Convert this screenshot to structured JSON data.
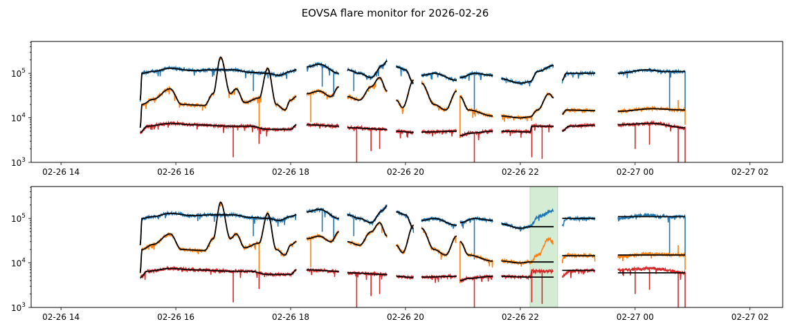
{
  "chart_data": {
    "type": "line",
    "title": "EOVSA flare monitor for 2026-02-26",
    "xlabel": "",
    "ylabel": "",
    "yscale": "log",
    "ylim": [
      1000,
      520000
    ],
    "xlim_hours": [
      13.48,
      26.57
    ],
    "yticks": [
      {
        "v": 1000,
        "base": "10",
        "exp": "3"
      },
      {
        "v": 10000,
        "base": "10",
        "exp": "4"
      },
      {
        "v": 100000,
        "base": "10",
        "exp": "5"
      }
    ],
    "xticks": [
      {
        "h": 14,
        "label": "02-26 14"
      },
      {
        "h": 16,
        "label": "02-26 16"
      },
      {
        "h": 18,
        "label": "02-26 18"
      },
      {
        "h": 20,
        "label": "02-26 20"
      },
      {
        "h": 22,
        "label": "02-26 22"
      },
      {
        "h": 24,
        "label": "02-27 00"
      },
      {
        "h": 26,
        "label": "02-27 02"
      }
    ],
    "grid": false,
    "legend": "none",
    "panels": 2,
    "highlight_span_bottom_hours": [
      22.17,
      22.65
    ],
    "highlight_color": "#d4ebd4",
    "smoothed_color": "#000000",
    "smoothed_frozen_span_bottom": [
      22.17,
      22.58
    ],
    "series": [
      {
        "name": "blue",
        "color": "#1f77b4",
        "segments": [
          [
            [
              15.38,
              25000
            ],
            [
              15.41,
              100000
            ],
            [
              15.6,
              110000
            ],
            [
              15.9,
              130000
            ],
            [
              16.3,
              115000
            ],
            [
              16.6,
              120000
            ],
            [
              17.0,
              120000
            ],
            [
              17.3,
              105000
            ],
            [
              17.6,
              100000
            ],
            [
              17.8,
              90000
            ],
            [
              18.0,
              110000
            ],
            [
              18.1,
              120000
            ]
          ],
          [
            [
              18.28,
              140000
            ],
            [
              18.5,
              160000
            ],
            [
              18.84,
              100000
            ]
          ],
          [
            [
              18.99,
              120000
            ],
            [
              19.2,
              100000
            ],
            [
              19.4,
              80000
            ],
            [
              19.6,
              150000
            ],
            [
              19.68,
              190000
            ]
          ],
          [
            [
              19.84,
              140000
            ],
            [
              20.0,
              120000
            ],
            [
              20.14,
              60000
            ]
          ],
          [
            [
              20.28,
              90000
            ],
            [
              20.5,
              100000
            ],
            [
              20.89,
              70000
            ]
          ],
          [
            [
              20.95,
              80000
            ],
            [
              21.2,
              100000
            ],
            [
              21.52,
              90000
            ]
          ],
          [
            [
              21.67,
              75000
            ],
            [
              22.0,
              60000
            ],
            [
              22.17,
              65000
            ],
            [
              22.3,
              110000
            ],
            [
              22.58,
              150000
            ]
          ],
          [
            [
              22.73,
              70000
            ],
            [
              22.8,
              100000
            ],
            [
              23.3,
              100000
            ]
          ],
          [
            [
              23.7,
              100000
            ],
            [
              24.2,
              120000
            ],
            [
              24.5,
              110000
            ],
            [
              24.87,
              110000
            ]
          ]
        ],
        "spikes": [
          [
            17.35,
            40000
          ],
          [
            18.55,
            50000
          ],
          [
            18.75,
            30000
          ],
          [
            19.1,
            40000
          ],
          [
            20.92,
            12000
          ],
          [
            21.2,
            12000
          ],
          [
            24.6,
            14000
          ],
          [
            24.87,
            14000
          ]
        ]
      },
      {
        "name": "orange",
        "color": "#ff7f0e",
        "segments": [
          [
            [
              15.38,
              6000
            ],
            [
              15.41,
              20000
            ],
            [
              15.6,
              26000
            ],
            [
              15.9,
              45000
            ],
            [
              16.1,
              20000
            ],
            [
              16.5,
              19000
            ],
            [
              16.65,
              35000
            ],
            [
              16.78,
              230000
            ],
            [
              16.95,
              35000
            ],
            [
              17.05,
              45000
            ],
            [
              17.2,
              22000
            ],
            [
              17.45,
              28000
            ],
            [
              17.6,
              130000
            ],
            [
              17.75,
              20000
            ],
            [
              17.9,
              15000
            ],
            [
              18.0,
              25000
            ],
            [
              18.1,
              30000
            ]
          ],
          [
            [
              18.28,
              35000
            ],
            [
              18.5,
              40000
            ],
            [
              18.7,
              30000
            ],
            [
              18.84,
              50000
            ]
          ],
          [
            [
              18.99,
              30000
            ],
            [
              19.2,
              25000
            ],
            [
              19.4,
              50000
            ],
            [
              19.55,
              80000
            ],
            [
              19.68,
              40000
            ]
          ],
          [
            [
              19.84,
              25000
            ],
            [
              19.95,
              17000
            ],
            [
              20.14,
              70000
            ]
          ],
          [
            [
              20.28,
              60000
            ],
            [
              20.5,
              20000
            ],
            [
              20.7,
              15000
            ],
            [
              20.89,
              40000
            ]
          ],
          [
            [
              20.95,
              30000
            ],
            [
              21.1,
              15000
            ],
            [
              21.52,
              11000
            ]
          ],
          [
            [
              21.67,
              11000
            ],
            [
              22.0,
              10000
            ],
            [
              22.17,
              10500
            ],
            [
              22.3,
              15000
            ],
            [
              22.5,
              35000
            ],
            [
              22.58,
              28000
            ]
          ],
          [
            [
              22.73,
              12000
            ],
            [
              22.8,
              15000
            ],
            [
              23.3,
              14500
            ]
          ],
          [
            [
              23.7,
              14000
            ],
            [
              24.3,
              16000
            ],
            [
              24.87,
              15000
            ]
          ]
        ],
        "spikes": [
          [
            17.45,
            6000
          ],
          [
            18.35,
            8000
          ],
          [
            20.95,
            3500
          ],
          [
            24.75,
            25000
          ],
          [
            24.87,
            7000
          ]
        ]
      },
      {
        "name": "red",
        "color": "#d62728",
        "segments": [
          [
            [
              15.38,
              4700
            ],
            [
              15.5,
              6500
            ],
            [
              15.9,
              7500
            ],
            [
              16.3,
              7000
            ],
            [
              17.0,
              6500
            ],
            [
              17.3,
              6500
            ],
            [
              17.6,
              5500
            ],
            [
              18.0,
              5500
            ],
            [
              18.1,
              7000
            ]
          ],
          [
            [
              18.28,
              7000
            ],
            [
              18.84,
              6500
            ]
          ],
          [
            [
              18.99,
              6000
            ],
            [
              19.68,
              5500
            ]
          ],
          [
            [
              19.84,
              5000
            ],
            [
              20.14,
              4700
            ]
          ],
          [
            [
              20.28,
              4800
            ],
            [
              20.89,
              5000
            ]
          ],
          [
            [
              20.95,
              4000
            ],
            [
              21.1,
              4500
            ],
            [
              21.52,
              5000
            ]
          ],
          [
            [
              21.67,
              5000
            ],
            [
              22.17,
              4800
            ],
            [
              22.2,
              6500
            ],
            [
              22.58,
              6500
            ]
          ],
          [
            [
              22.73,
              5000
            ],
            [
              22.85,
              6500
            ],
            [
              23.3,
              6800
            ]
          ],
          [
            [
              23.7,
              7000
            ],
            [
              24.3,
              7500
            ],
            [
              24.87,
              6000
            ]
          ]
        ],
        "spikes": [
          [
            17.0,
            1300
          ],
          [
            17.45,
            2600
          ],
          [
            19.15,
            1000
          ],
          [
            19.4,
            1800
          ],
          [
            19.55,
            2000
          ],
          [
            21.2,
            1000
          ],
          [
            22.2,
            1300
          ],
          [
            22.38,
            1200
          ],
          [
            24.0,
            2000
          ],
          [
            24.25,
            2500
          ],
          [
            24.75,
            1000
          ],
          [
            24.87,
            1000
          ]
        ]
      }
    ]
  }
}
